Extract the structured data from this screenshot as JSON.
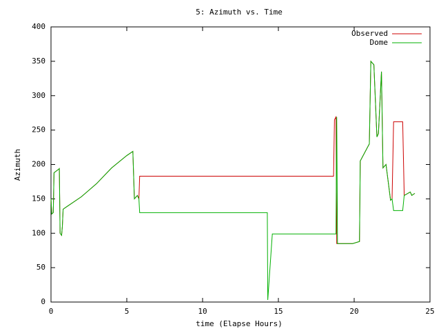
{
  "chart_data": {
    "type": "line",
    "title": "5: Azimuth vs. Time",
    "x_label": "time (Elapse Hours)",
    "y_label": "Azimuth",
    "x": [
      0,
      0.05,
      0.15,
      0.2,
      0.5,
      0.55,
      0.6,
      0.7,
      0.75,
      0.8,
      1,
      2,
      3,
      4,
      5,
      5.4,
      5.5,
      5.7,
      5.8,
      5.85,
      14.27,
      14.3,
      14.6,
      18.64,
      18.7,
      18.8,
      18.85,
      18.9,
      19.9,
      20.35,
      20.4,
      21,
      21.1,
      21.3,
      21.5,
      21.6,
      21.8,
      21.9,
      22.1,
      22.4,
      22.5,
      22.6,
      23.2,
      23.3,
      23.7,
      23.8,
      24
    ],
    "series": [
      {
        "name": "Observed",
        "color": "#cc0000",
        "values": [
          150,
          128,
          130,
          188,
          193,
          194,
          100,
          97,
          110,
          135,
          138,
          153,
          172,
          195,
          213,
          219,
          150,
          155,
          150,
          183,
          183,
          183,
          183,
          183,
          265,
          269,
          85,
          85,
          85,
          88,
          205,
          230,
          350,
          345,
          240,
          245,
          335,
          195,
          200,
          148,
          150,
          262,
          262,
          155,
          160,
          155,
          158
        ]
      },
      {
        "name": "Dome",
        "color": "#00b000",
        "values": [
          150,
          128,
          130,
          188,
          193,
          194,
          100,
          97,
          110,
          135,
          138,
          153,
          172,
          195,
          213,
          219,
          150,
          155,
          150,
          130,
          130,
          3,
          99,
          99,
          99,
          99,
          269,
          85,
          85,
          88,
          205,
          230,
          350,
          345,
          240,
          245,
          335,
          195,
          200,
          148,
          150,
          133,
          133,
          155,
          160,
          155,
          158
        ]
      }
    ],
    "xlim": [
      0,
      25
    ],
    "xticks": [
      0,
      5,
      10,
      15,
      20,
      25
    ],
    "ylim": [
      0,
      400
    ],
    "yticks": [
      0,
      50,
      100,
      150,
      200,
      250,
      300,
      350,
      400
    ],
    "legend": "upper-right"
  }
}
